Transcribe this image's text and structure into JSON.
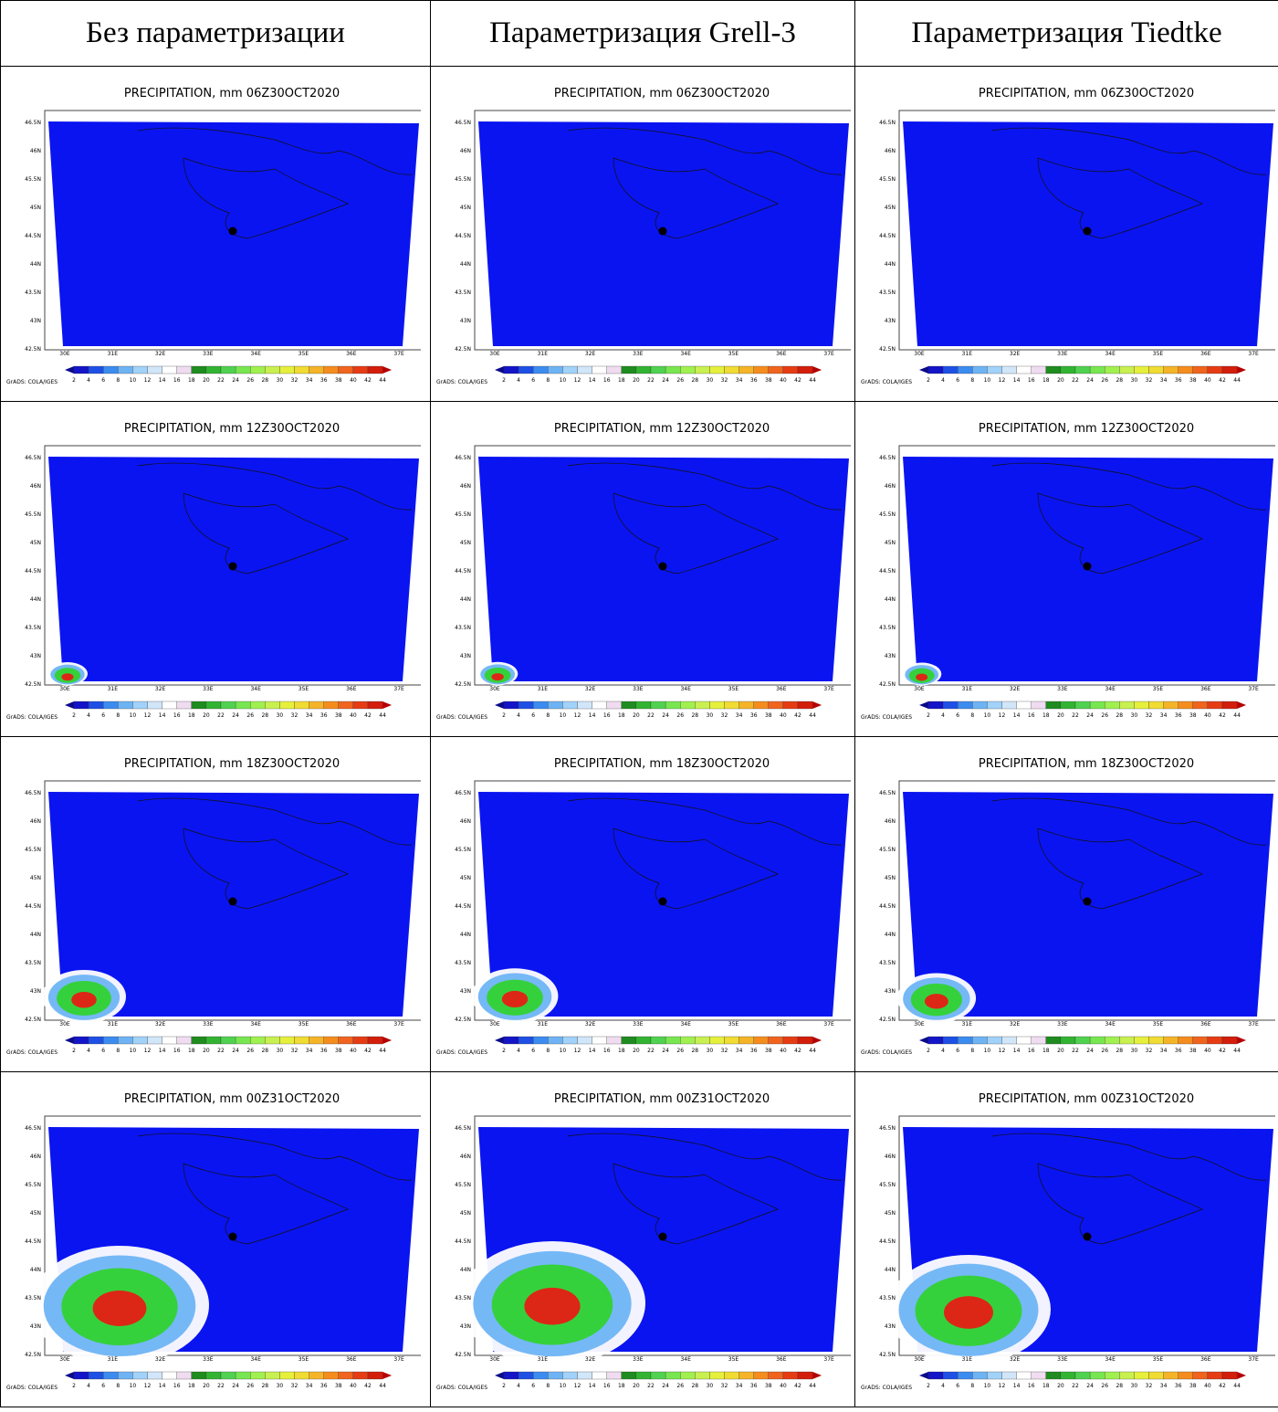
{
  "header": {
    "columns": [
      "Без параметризации",
      "Параметризация Grell-3",
      "Параметризация Tiedtke"
    ]
  },
  "table": {
    "rows": [
      [
        "PRECIPITATION, mm 06Z30OCT2020",
        "PRECIPITATION, mm 06Z30OCT2020",
        "PRECIPITATION, mm 06Z30OCT2020"
      ],
      [
        "PRECIPITATION, mm 12Z30OCT2020",
        "PRECIPITATION, mm 12Z30OCT2020",
        "PRECIPITATION, mm 12Z30OCT2020"
      ],
      [
        "PRECIPITATION, mm 18Z30OCT2020",
        "PRECIPITATION, mm 18Z30OCT2020",
        "PRECIPITATION, mm 18Z30OCT2020"
      ],
      [
        "PRECIPITATION, mm 00Z31OCT2020",
        "PRECIPITATION, mm 00Z31OCT2020",
        "PRECIPITATION, mm 00Z31OCT2020"
      ]
    ]
  },
  "map": {
    "lat_labels": [
      "46.5N",
      "46N",
      "45.5N",
      "45N",
      "44.5N",
      "44N",
      "43.5N",
      "43N",
      "42.5N"
    ],
    "lon_labels": [
      "30E",
      "31E",
      "32E",
      "33E",
      "34E",
      "35E",
      "36E",
      "37E"
    ],
    "colorbar_labels": [
      2,
      4,
      6,
      8,
      10,
      12,
      14,
      16,
      18,
      20,
      22,
      24,
      26,
      28,
      30,
      32,
      34,
      36,
      38,
      40,
      42,
      44
    ],
    "credit": "GrADS: COLA/IGES"
  }
}
